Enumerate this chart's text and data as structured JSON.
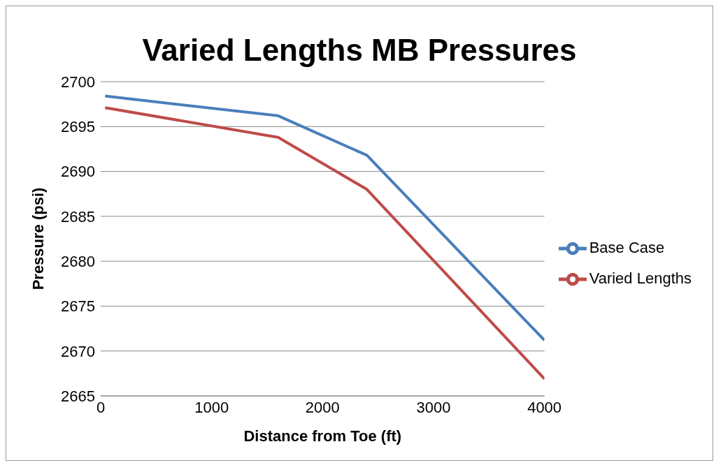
{
  "chart_data": {
    "type": "line",
    "title": "Varied Lengths MB Pressures",
    "xlabel": "Distance from Toe (ft)",
    "ylabel": "Pressure (psi)",
    "xlim": [
      0,
      4000
    ],
    "xticks": [
      0,
      1000,
      2000,
      3000,
      4000
    ],
    "ylim": [
      2665,
      2700
    ],
    "yticks": [
      2665,
      2670,
      2675,
      2680,
      2685,
      2690,
      2695,
      2700
    ],
    "grid": "y",
    "legend": "right",
    "marker": "none",
    "line_style": "solid",
    "series": [
      {
        "name": "Base Case",
        "color": "#4a7ebb",
        "x": [
          40,
          1600,
          2400,
          4000
        ],
        "values": [
          2698.4,
          2696.2,
          2691.8,
          2671.2
        ]
      },
      {
        "name": "Varied Lengths",
        "color": "#be4b48",
        "x": [
          40,
          1600,
          2400,
          4000
        ],
        "values": [
          2697.1,
          2693.8,
          2688.0,
          2666.9
        ]
      }
    ]
  }
}
